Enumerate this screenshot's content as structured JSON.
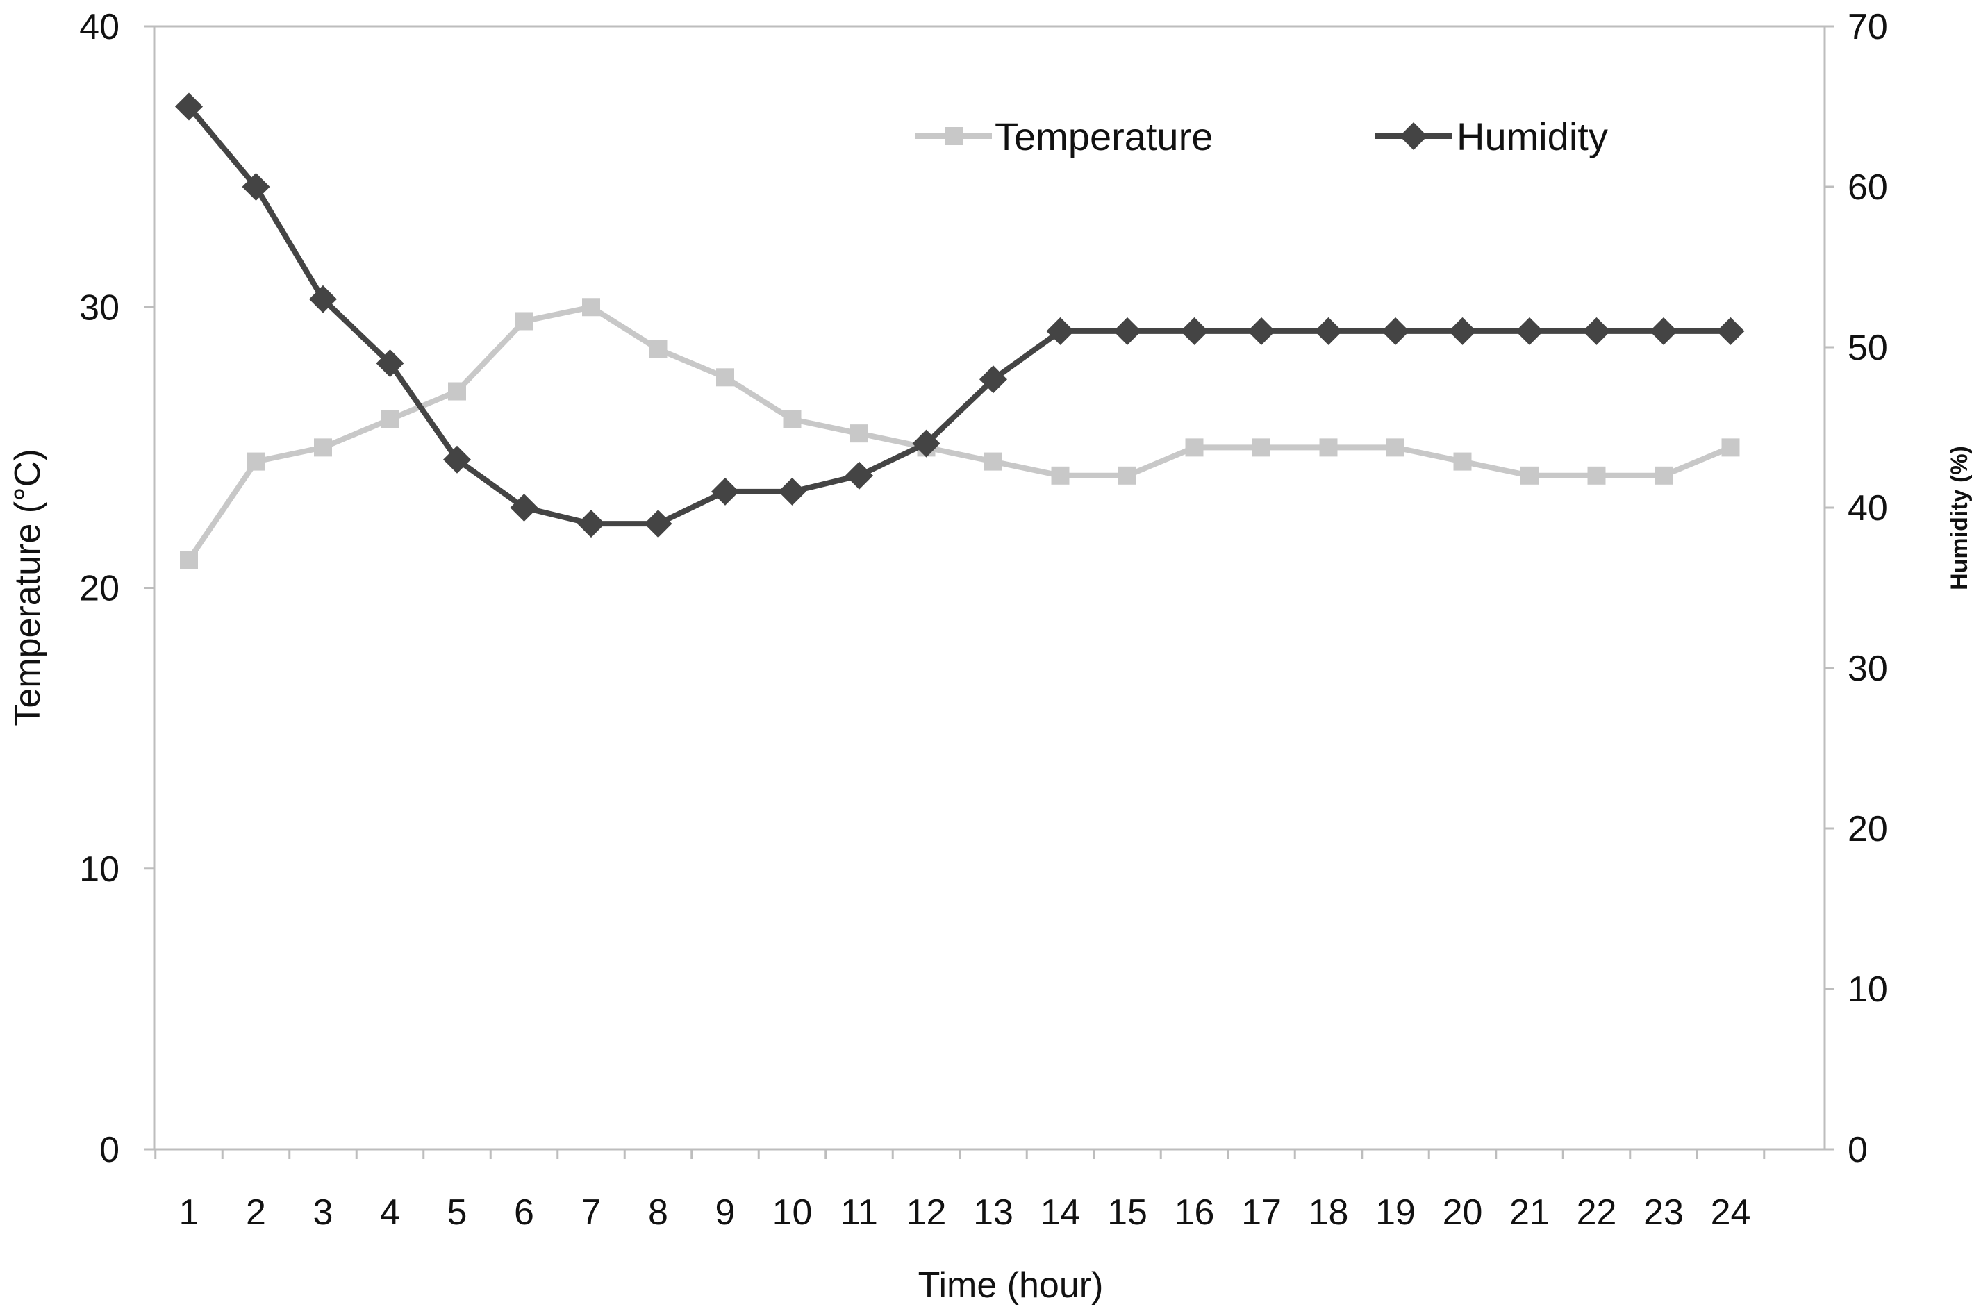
{
  "chart_data": {
    "type": "line",
    "title": "",
    "xlabel": "Time (hour)",
    "ylabel_left": "Temperature (°C)",
    "ylabel_right": "Humidity (%)",
    "categories": [
      "1",
      "2",
      "3",
      "4",
      "5",
      "6",
      "7",
      "8",
      "9",
      "10",
      "11",
      "12",
      "13",
      "14",
      "15",
      "16",
      "17",
      "18",
      "19",
      "20",
      "21",
      "22",
      "23",
      "24"
    ],
    "ylim_left": [
      0,
      40
    ],
    "yticks_left": [
      "0",
      "10",
      "20",
      "30",
      "40"
    ],
    "ylim_right": [
      0,
      70
    ],
    "yticks_right": [
      "0",
      "10",
      "20",
      "30",
      "40",
      "50",
      "60",
      "70"
    ],
    "grid": false,
    "legend_position": "top-right",
    "series": [
      {
        "name": "Temperature",
        "axis": "left",
        "marker": "square",
        "color": "#c8c8c8",
        "values": [
          21,
          24.5,
          25,
          26,
          27,
          29.5,
          30,
          28.5,
          27.5,
          26,
          25.5,
          25,
          24.5,
          24,
          24,
          25,
          25,
          25,
          25,
          24.5,
          24,
          24,
          24,
          25
        ]
      },
      {
        "name": "Humidity",
        "axis": "right",
        "marker": "diamond",
        "color": "#444444",
        "values": [
          65,
          60,
          53,
          49,
          43,
          40,
          39,
          39,
          41,
          41,
          42,
          44,
          48,
          51,
          51,
          51,
          51,
          51,
          51,
          51,
          51,
          51,
          51,
          51
        ]
      }
    ]
  }
}
